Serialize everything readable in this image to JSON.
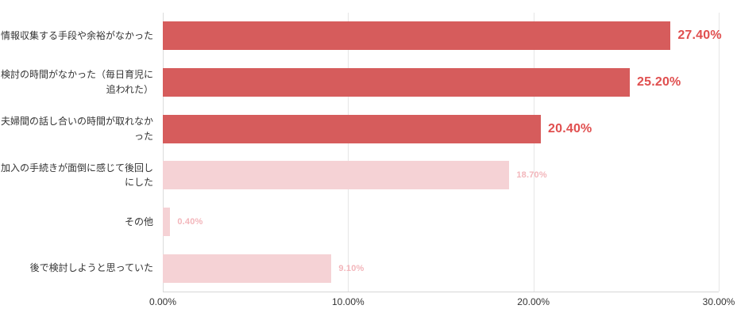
{
  "chart_data": {
    "type": "bar",
    "orientation": "horizontal",
    "title": "",
    "categories": [
      "情報収集する手段や余裕がなかった",
      "検討の時間がなかった（毎日育児に追われた）",
      "夫婦間の話し合いの時間が取れなかった",
      "加入の手続きが面倒に感じて後回しにした",
      "その他",
      "後で検討しようと思っていた"
    ],
    "values": [
      27.4,
      25.2,
      20.4,
      18.7,
      0.4,
      9.1
    ],
    "value_labels": [
      "27.40%",
      "25.20%",
      "20.40%",
      "18.70%",
      "0.40%",
      "9.10%"
    ],
    "bar_colors": [
      "#d65c5c",
      "#d65c5c",
      "#d65c5c",
      "#f5d2d5",
      "#f5d2d5",
      "#f5d2d5"
    ],
    "value_label_colors": [
      "#e04f4f",
      "#e04f4f",
      "#e04f4f",
      "#f3b6bb",
      "#f3b6bb",
      "#f3b6bb"
    ],
    "value_label_sizes": [
      "large",
      "large",
      "large",
      "small",
      "small",
      "small"
    ],
    "xlim": [
      0,
      30
    ],
    "x_ticks": [
      "0.00%",
      "10.00%",
      "20.00%",
      "30.00%"
    ],
    "x_tick_values": [
      0,
      10,
      20,
      30
    ],
    "grid": true,
    "legend": "none",
    "colors": {
      "bar_dark": "#d65c5c",
      "bar_light": "#f5d2d5",
      "value_dark": "#e04f4f",
      "value_light": "#f3b6bb",
      "gridline": "#e6e6e6",
      "axis_line": "#d6d6d6",
      "category_text": "#333333",
      "background": "#ffffff"
    }
  }
}
